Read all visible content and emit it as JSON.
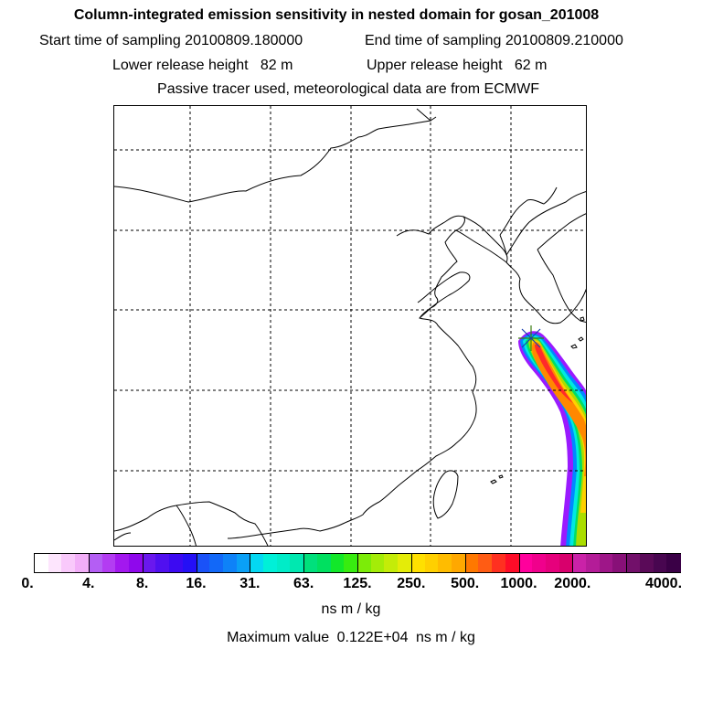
{
  "header": {
    "title": "Column-integrated emission sensitivity in nested domain for gosan_201008",
    "start_label": "Start time of sampling 20100809.180000",
    "end_label": "End time of sampling 20100809.210000",
    "lower_label": "Lower release height   82 m",
    "upper_label": "Upper release height   62 m",
    "tracer_note": "Passive tracer used, meteorological data are from ECMWF"
  },
  "map": {
    "region": "East Asia nested domain",
    "release_site_marker": "star-marker",
    "plume_colors": [
      "#9a1aff",
      "#0088ff",
      "#00e8e0",
      "#00dd66",
      "#aadd00",
      "#ffd000",
      "#ff8800",
      "#ff2a2a"
    ]
  },
  "colorbar": {
    "colors": [
      "#ffffff",
      "#fde5fd",
      "#f9c9fb",
      "#f2aef8",
      "#b45ef4",
      "#b33cf2",
      "#a318ef",
      "#8f08ec",
      "#6a18ee",
      "#5010f0",
      "#3c0af2",
      "#2410f6",
      "#1a52f8",
      "#1268f8",
      "#0e82f8",
      "#0aa0f6",
      "#04d8f2",
      "#00f0d8",
      "#00ecc8",
      "#00e8b0",
      "#00e07c",
      "#00e060",
      "#12e82a",
      "#38ec10",
      "#7cec08",
      "#a4ec08",
      "#c4ec08",
      "#e4ec08",
      "#ffe000",
      "#ffd000",
      "#ffbc00",
      "#ffa800",
      "#ff7800",
      "#ff5c14",
      "#ff3020",
      "#ff0c28",
      "#ff009c",
      "#f0008c",
      "#e6007c",
      "#d8006c",
      "#ca22a8",
      "#b41c98",
      "#9e1688",
      "#881078",
      "#72106a",
      "#5a0a58",
      "#480650",
      "#3a0046"
    ],
    "tick_labels": [
      "0.",
      "4.",
      "8.",
      "16.",
      "31.",
      "63.",
      "125.",
      "250.",
      "500.",
      "1000.",
      "2000.",
      "4000."
    ]
  },
  "footer": {
    "unit": "ns m / kg",
    "max_label": "Maximum value",
    "max_value": "0.122E+04",
    "max_unit": "ns m / kg"
  }
}
